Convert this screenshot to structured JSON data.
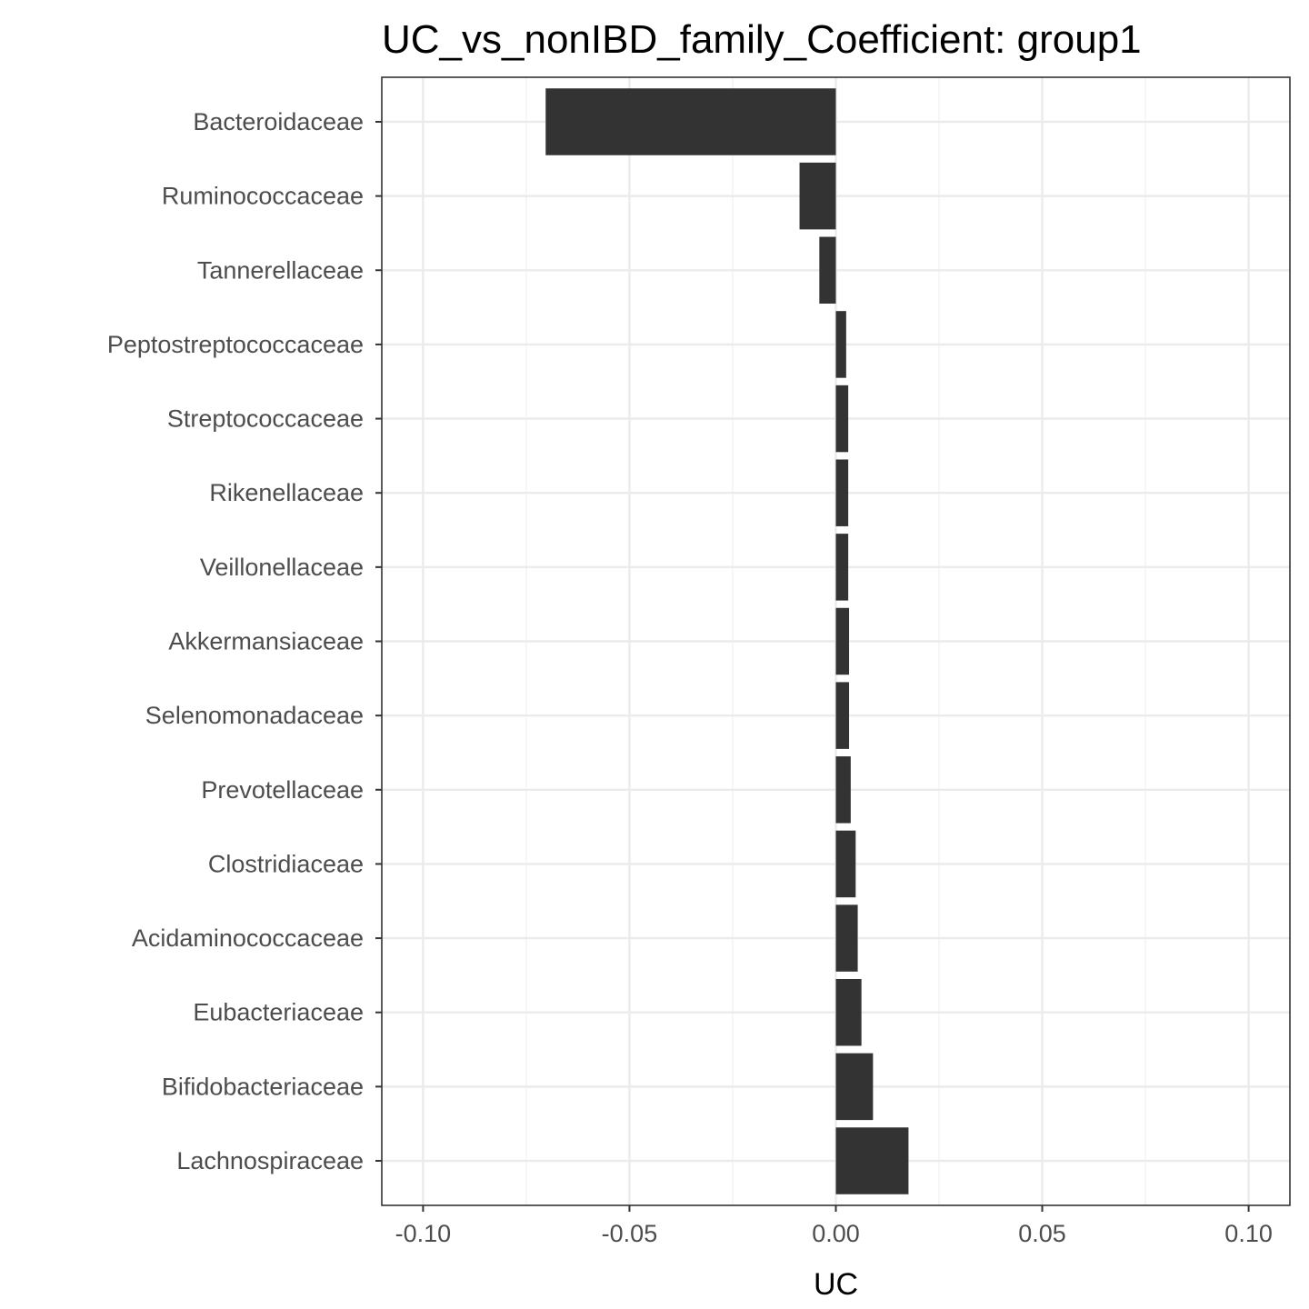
{
  "chart_data": {
    "type": "bar",
    "orientation": "horizontal",
    "title": "UC_vs_nonIBD_family_Coefficient: group1",
    "xlabel": "UC",
    "ylabel": "",
    "xlim": [
      -0.11,
      0.11
    ],
    "xticks": [
      -0.1,
      -0.05,
      0.0,
      0.05,
      0.1
    ],
    "xtick_labels": [
      "-0.10",
      "-0.05",
      "0.00",
      "0.05",
      "0.10"
    ],
    "grid": true,
    "categories": [
      "Bacteroidaceae",
      "Ruminococcaceae",
      "Tannerellaceae",
      "Peptostreptococcaceae",
      "Streptococcaceae",
      "Rikenellaceae",
      "Veillonellaceae",
      "Akkermansiaceae",
      "Selenomonadaceae",
      "Prevotellaceae",
      "Clostridiaceae",
      "Acidaminococcaceae",
      "Eubacteriaceae",
      "Bifidobacteriaceae",
      "Lachnospiraceae"
    ],
    "values": [
      -0.0703,
      -0.0088,
      -0.004,
      0.0025,
      0.003,
      0.003,
      0.003,
      0.0032,
      0.0032,
      0.0036,
      0.0048,
      0.0053,
      0.0062,
      0.009,
      0.0176
    ],
    "colors": {
      "bar": "#333333",
      "panel_border": "#333333",
      "grid_major": "#ebebeb",
      "grid_minor": "#f2f2f2"
    }
  }
}
